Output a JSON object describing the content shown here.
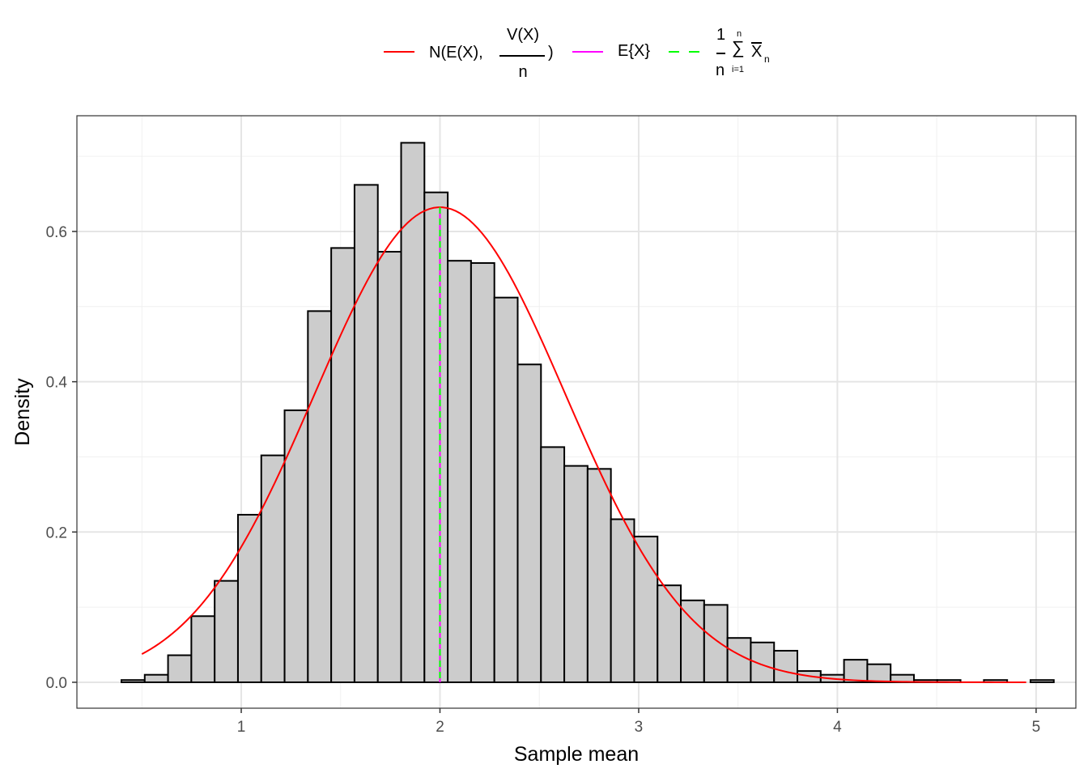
{
  "chart_data": {
    "type": "bar",
    "subtype": "histogram with density overlay",
    "title": "",
    "xlabel": "Sample mean",
    "ylabel": "Density",
    "xlim": [
      0.173,
      5.2
    ],
    "ylim": [
      -0.0345,
      0.754
    ],
    "xticks": [
      1,
      2,
      3,
      4,
      5
    ],
    "xtick_labels": [
      "1",
      "2",
      "3",
      "4",
      "5"
    ],
    "yticks": [
      0,
      0.2,
      0.4,
      0.6
    ],
    "ytick_labels": [
      "0.0",
      "0.2",
      "0.4",
      "0.6"
    ],
    "grid": true,
    "legend_position": "top",
    "bin_start": 0.397,
    "bin_width": 0.1173,
    "densities": [
      0.003,
      0.01,
      0.036,
      0.088,
      0.135,
      0.223,
      0.302,
      0.362,
      0.494,
      0.578,
      0.662,
      0.573,
      0.718,
      0.652,
      0.561,
      0.558,
      0.512,
      0.423,
      0.313,
      0.288,
      0.284,
      0.217,
      0.194,
      0.129,
      0.109,
      0.103,
      0.059,
      0.053,
      0.042,
      0.015,
      0.01,
      0.03,
      0.024,
      0.01,
      0.003,
      0.003,
      0,
      0.003,
      0,
      0.003
    ],
    "normal_curve": {
      "mean": 2,
      "sd": 0.631,
      "x_range": [
        0.5,
        4.95
      ],
      "color": "#ff0000"
    },
    "mean_line": {
      "x": 2,
      "color": "#ff00ff"
    },
    "sample_mean_line": {
      "x": 2,
      "color": "#00ff00",
      "style": "dashed"
    },
    "legend": {
      "normal": {
        "prefix": "N(E(X),",
        "num": "V(X)",
        "den": "n",
        "suffix": ")"
      },
      "expect": "E{X}",
      "sample": {
        "num": "1",
        "den": "n",
        "sum_top": "n",
        "sum_sym": "∑",
        "sum_bottom": "i=1",
        "var": "X",
        "sub": "n"
      }
    }
  }
}
